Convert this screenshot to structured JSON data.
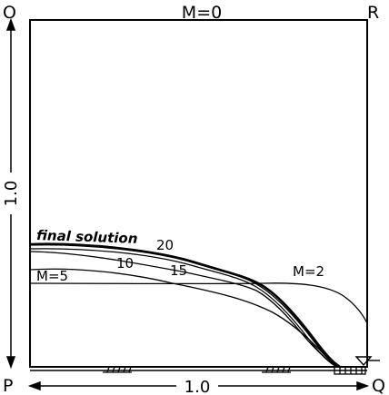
{
  "corners": {
    "top_left": "O",
    "top_right": "R",
    "bottom_left": "P",
    "bottom_right": "Q"
  },
  "top_label": "M=0",
  "dimensions": {
    "horizontal": "1.0",
    "vertical": "1.0"
  },
  "curve_labels": {
    "final": "final solution",
    "m20": "20",
    "m10": "10",
    "m15": "15",
    "m5": "M=5",
    "m2": "M=2"
  }
}
